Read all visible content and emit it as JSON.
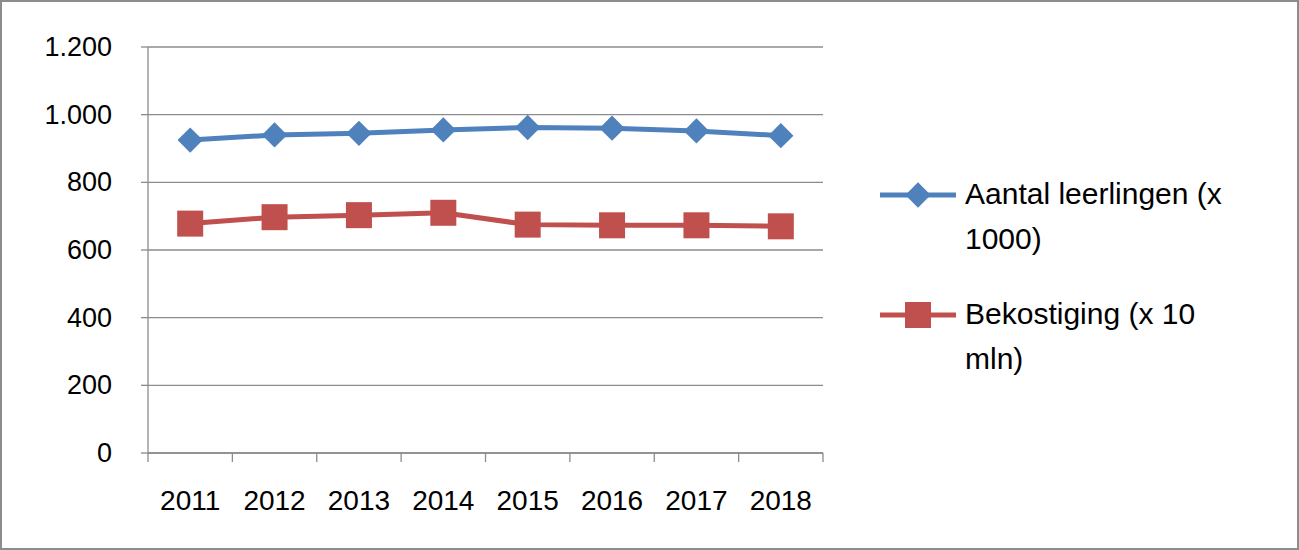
{
  "chart_data": {
    "type": "line",
    "categories": [
      "2011",
      "2012",
      "2013",
      "2014",
      "2015",
      "2016",
      "2017",
      "2018"
    ],
    "series": [
      {
        "name": "Aantal leerlingen (x 1000)",
        "color": "#4f81bd",
        "marker": "diamond",
        "values": [
          925,
          940,
          945,
          955,
          962,
          960,
          952,
          938
        ]
      },
      {
        "name": "Bekostiging (x 10 mln)",
        "color": "#c0504d",
        "marker": "square",
        "values": [
          678,
          697,
          703,
          710,
          675,
          673,
          673,
          670
        ]
      }
    ],
    "ylim": [
      0,
      1200
    ],
    "yticks": [
      0,
      200,
      400,
      600,
      800,
      {
        "value": 1000,
        "label": "1.000"
      },
      {
        "value": 1200,
        "label": "1.200"
      }
    ],
    "grid": true,
    "legend": "right"
  }
}
